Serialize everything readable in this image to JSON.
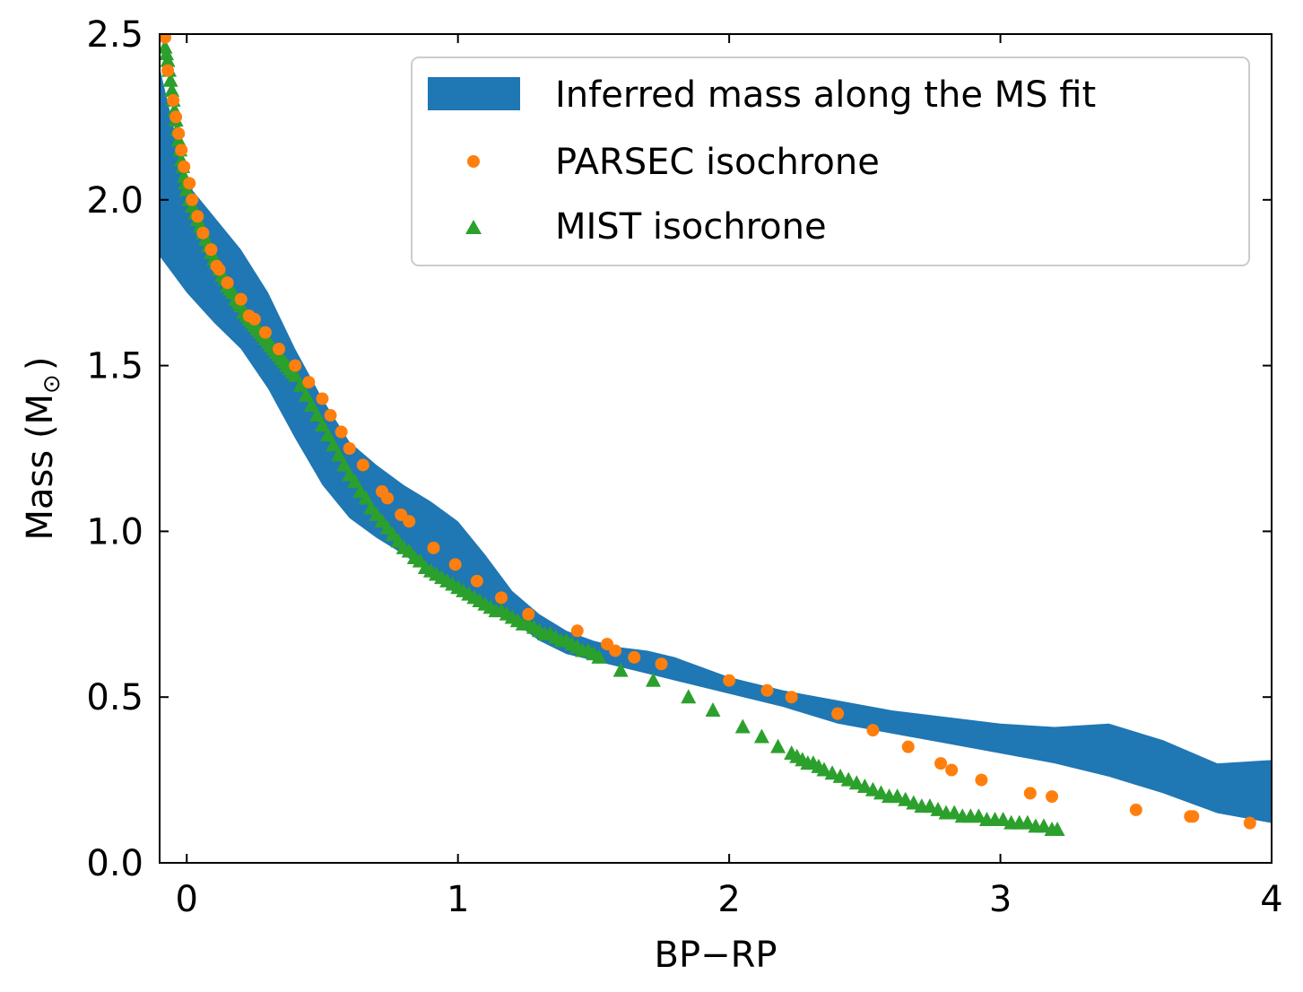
{
  "chart_data": {
    "type": "scatter",
    "xlabel": "BP−RP",
    "ylabel": "Mass (M",
    "ylabel_symbol": "⊙",
    "ylabel_close": ")",
    "xlim": [
      -0.1,
      4.0
    ],
    "ylim": [
      0.0,
      2.5
    ],
    "xticks": [
      0,
      1,
      2,
      3,
      4
    ],
    "xtick_labels": [
      "0",
      "1",
      "2",
      "3",
      "4"
    ],
    "yticks": [
      0.0,
      0.5,
      1.0,
      1.5,
      2.0,
      2.5
    ],
    "ytick_labels": [
      "0.0",
      "0.5",
      "1.0",
      "1.5",
      "2.0",
      "2.5"
    ],
    "grid": false,
    "legend_position": "top-right",
    "colors": {
      "band": "#1f77b4",
      "parsec": "#ff7f0e",
      "mist": "#2ca02c"
    },
    "series": [
      {
        "name": "Inferred mass along the MS fit",
        "kind": "band",
        "x": [
          -0.1,
          0.0,
          0.1,
          0.2,
          0.3,
          0.4,
          0.5,
          0.6,
          0.7,
          0.8,
          0.9,
          1.0,
          1.1,
          1.2,
          1.3,
          1.4,
          1.5,
          1.6,
          1.7,
          1.8,
          1.9,
          2.0,
          2.2,
          2.4,
          2.6,
          2.8,
          3.0,
          3.2,
          3.4,
          3.6,
          3.8,
          4.0
        ],
        "lower": [
          1.83,
          1.72,
          1.63,
          1.55,
          1.43,
          1.28,
          1.14,
          1.04,
          0.98,
          0.93,
          0.87,
          0.83,
          0.78,
          0.73,
          0.67,
          0.63,
          0.61,
          0.59,
          0.57,
          0.55,
          0.53,
          0.51,
          0.47,
          0.42,
          0.39,
          0.36,
          0.33,
          0.3,
          0.26,
          0.21,
          0.15,
          0.12
        ],
        "upper": [
          2.4,
          2.05,
          1.95,
          1.85,
          1.72,
          1.55,
          1.4,
          1.27,
          1.2,
          1.14,
          1.09,
          1.03,
          0.93,
          0.82,
          0.75,
          0.7,
          0.67,
          0.65,
          0.64,
          0.62,
          0.59,
          0.56,
          0.52,
          0.49,
          0.46,
          0.44,
          0.42,
          0.41,
          0.42,
          0.37,
          0.3,
          0.31
        ]
      },
      {
        "name": "PARSEC isochrone",
        "kind": "circle",
        "x": [
          -0.08,
          -0.07,
          -0.05,
          -0.04,
          -0.03,
          -0.02,
          -0.01,
          0.01,
          0.02,
          0.04,
          0.06,
          0.09,
          0.11,
          0.12,
          0.15,
          0.2,
          0.23,
          0.25,
          0.29,
          0.34,
          0.4,
          0.45,
          0.5,
          0.53,
          0.57,
          0.6,
          0.65,
          0.72,
          0.74,
          0.79,
          0.82,
          0.91,
          0.99,
          1.07,
          1.16,
          1.26,
          1.44,
          1.55,
          1.58,
          1.65,
          1.75,
          2.0,
          2.14,
          2.23,
          2.4,
          2.53,
          2.66,
          2.78,
          2.82,
          2.93,
          3.11,
          3.19,
          3.5,
          3.7,
          3.71,
          3.92
        ],
        "y": [
          2.49,
          2.39,
          2.3,
          2.25,
          2.2,
          2.15,
          2.1,
          2.05,
          2.0,
          1.95,
          1.9,
          1.85,
          1.8,
          1.79,
          1.75,
          1.7,
          1.65,
          1.64,
          1.6,
          1.55,
          1.5,
          1.45,
          1.4,
          1.35,
          1.3,
          1.25,
          1.2,
          1.12,
          1.1,
          1.05,
          1.03,
          0.95,
          0.9,
          0.85,
          0.8,
          0.75,
          0.7,
          0.66,
          0.64,
          0.62,
          0.6,
          0.55,
          0.52,
          0.5,
          0.45,
          0.4,
          0.35,
          0.3,
          0.28,
          0.25,
          0.21,
          0.2,
          0.16,
          0.14,
          0.14,
          0.12
        ]
      },
      {
        "name": "MIST isochrone",
        "kind": "triangle",
        "x": [
          -0.08,
          -0.075,
          -0.07,
          -0.065,
          -0.06,
          -0.055,
          -0.05,
          -0.045,
          -0.04,
          -0.035,
          -0.03,
          -0.025,
          -0.02,
          -0.015,
          -0.01,
          -0.005,
          0.0,
          0.01,
          0.02,
          0.03,
          0.04,
          0.05,
          0.06,
          0.07,
          0.08,
          0.09,
          0.1,
          0.11,
          0.12,
          0.13,
          0.14,
          0.15,
          0.16,
          0.17,
          0.18,
          0.19,
          0.2,
          0.21,
          0.22,
          0.23,
          0.24,
          0.25,
          0.26,
          0.27,
          0.28,
          0.29,
          0.3,
          0.31,
          0.32,
          0.33,
          0.34,
          0.35,
          0.36,
          0.37,
          0.38,
          0.39,
          0.4,
          0.42,
          0.44,
          0.46,
          0.48,
          0.5,
          0.52,
          0.54,
          0.56,
          0.58,
          0.6,
          0.62,
          0.64,
          0.66,
          0.68,
          0.7,
          0.72,
          0.74,
          0.76,
          0.78,
          0.8,
          0.82,
          0.84,
          0.86,
          0.88,
          0.9,
          0.92,
          0.94,
          0.96,
          0.98,
          1.0,
          1.02,
          1.04,
          1.06,
          1.08,
          1.1,
          1.12,
          1.14,
          1.16,
          1.18,
          1.2,
          1.22,
          1.24,
          1.26,
          1.28,
          1.3,
          1.32,
          1.34,
          1.36,
          1.38,
          1.4,
          1.42,
          1.44,
          1.46,
          1.48,
          1.5,
          1.52,
          1.6,
          1.72,
          1.85,
          1.94,
          2.05,
          2.12,
          2.18,
          2.23,
          2.25,
          2.27,
          2.29,
          2.31,
          2.33,
          2.35,
          2.38,
          2.41,
          2.44,
          2.47,
          2.5,
          2.53,
          2.56,
          2.59,
          2.62,
          2.65,
          2.68,
          2.71,
          2.74,
          2.77,
          2.8,
          2.83,
          2.86,
          2.89,
          2.92,
          2.95,
          2.98,
          3.01,
          3.04,
          3.07,
          3.1,
          3.13,
          3.16,
          3.19,
          3.21
        ],
        "y": [
          2.46,
          2.44,
          2.42,
          2.39,
          2.36,
          2.33,
          2.3,
          2.27,
          2.24,
          2.21,
          2.18,
          2.15,
          2.12,
          2.1,
          2.07,
          2.05,
          2.03,
          2.0,
          1.98,
          1.96,
          1.94,
          1.92,
          1.9,
          1.88,
          1.86,
          1.84,
          1.82,
          1.81,
          1.79,
          1.77,
          1.76,
          1.74,
          1.73,
          1.72,
          1.7,
          1.69,
          1.68,
          1.66,
          1.65,
          1.64,
          1.63,
          1.62,
          1.61,
          1.6,
          1.59,
          1.58,
          1.57,
          1.56,
          1.55,
          1.54,
          1.53,
          1.52,
          1.51,
          1.5,
          1.49,
          1.48,
          1.47,
          1.44,
          1.41,
          1.38,
          1.35,
          1.32,
          1.29,
          1.26,
          1.23,
          1.2,
          1.17,
          1.15,
          1.12,
          1.1,
          1.07,
          1.05,
          1.03,
          1.01,
          0.99,
          0.97,
          0.95,
          0.94,
          0.92,
          0.91,
          0.89,
          0.88,
          0.87,
          0.86,
          0.85,
          0.84,
          0.83,
          0.82,
          0.81,
          0.8,
          0.79,
          0.78,
          0.77,
          0.76,
          0.76,
          0.75,
          0.74,
          0.73,
          0.72,
          0.72,
          0.71,
          0.7,
          0.69,
          0.69,
          0.68,
          0.67,
          0.67,
          0.66,
          0.65,
          0.64,
          0.64,
          0.63,
          0.62,
          0.58,
          0.55,
          0.5,
          0.46,
          0.41,
          0.38,
          0.35,
          0.33,
          0.32,
          0.31,
          0.3,
          0.3,
          0.29,
          0.28,
          0.27,
          0.26,
          0.25,
          0.24,
          0.23,
          0.22,
          0.21,
          0.2,
          0.2,
          0.19,
          0.18,
          0.17,
          0.17,
          0.16,
          0.15,
          0.15,
          0.14,
          0.14,
          0.14,
          0.13,
          0.13,
          0.13,
          0.12,
          0.12,
          0.12,
          0.11,
          0.11,
          0.1,
          0.1
        ]
      }
    ]
  }
}
